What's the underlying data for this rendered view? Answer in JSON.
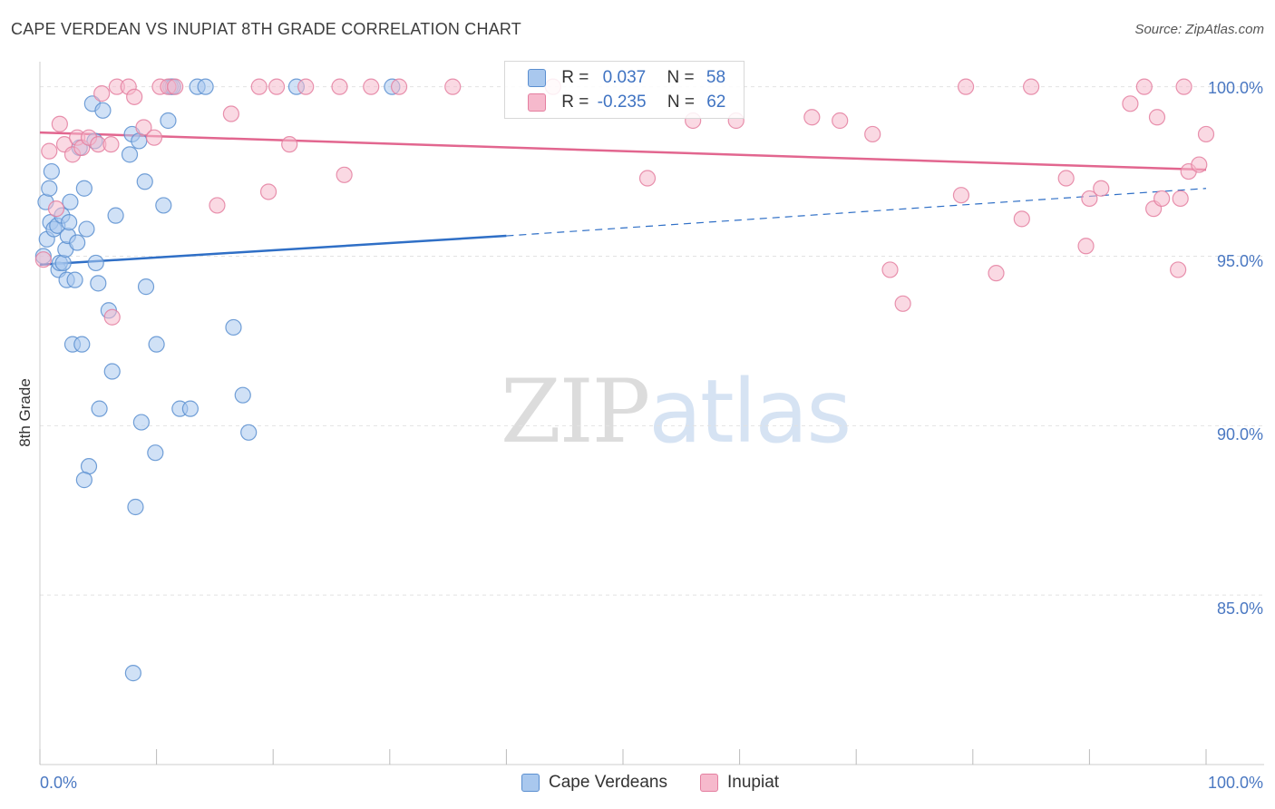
{
  "header": {
    "title": "CAPE VERDEAN VS INUPIAT 8TH GRADE CORRELATION CHART",
    "source": "Source: ZipAtlas.com"
  },
  "watermark": {
    "zip": "ZIP",
    "atlas": "atlas"
  },
  "legend": {
    "rows": [
      {
        "r_label": "R =",
        "r_value": "0.037",
        "n_label": "N =",
        "n_value": "58"
      },
      {
        "r_label": "R =",
        "r_value": "-0.235",
        "n_label": "N =",
        "n_value": "62"
      }
    ]
  },
  "bottom_legend": {
    "blue": "Cape Verdeans",
    "pink": "Inupiat"
  },
  "colors": {
    "blue_fill": "#a9c8ee",
    "blue_stroke": "#5b8fd0",
    "blue_line": "#2f6fc6",
    "pink_fill": "#f6b9cc",
    "pink_stroke": "#e47fa0",
    "pink_line": "#e2668f",
    "grid": "#e2e2e2",
    "axis_text": "#4a78c2"
  },
  "chart_data": {
    "type": "scatter",
    "title": "CAPE VERDEAN VS INUPIAT 8TH GRADE CORRELATION CHART",
    "xlabel": "",
    "ylabel": "8th Grade",
    "xlim": [
      0,
      100
    ],
    "ylim": [
      80.0,
      100.9
    ],
    "x_tick_labels": [
      "0.0%",
      "100.0%"
    ],
    "y_ticks": [
      85,
      90,
      95,
      100
    ],
    "y_tick_labels": [
      "85.0%",
      "90.0%",
      "95.0%",
      "100.0%"
    ],
    "grid": true,
    "series": [
      {
        "name": "Cape Verdeans",
        "color": "blue",
        "trend": {
          "x0": 0,
          "y0": 94.75,
          "x1": 40,
          "y1": 95.6,
          "dashed_to_x": 100,
          "dashed_to_y": 97.0
        },
        "points": [
          [
            0.3,
            95.0
          ],
          [
            0.5,
            96.6
          ],
          [
            0.6,
            95.5
          ],
          [
            0.8,
            97.0
          ],
          [
            0.9,
            96.0
          ],
          [
            1.0,
            97.5
          ],
          [
            1.2,
            95.8
          ],
          [
            1.5,
            95.9
          ],
          [
            1.6,
            94.6
          ],
          [
            1.7,
            94.8
          ],
          [
            1.9,
            96.2
          ],
          [
            2.0,
            94.8
          ],
          [
            2.2,
            95.2
          ],
          [
            2.3,
            94.3
          ],
          [
            2.4,
            95.6
          ],
          [
            2.5,
            96.0
          ],
          [
            2.6,
            96.6
          ],
          [
            2.8,
            92.4
          ],
          [
            3.0,
            94.3
          ],
          [
            3.2,
            95.4
          ],
          [
            3.4,
            98.2
          ],
          [
            3.6,
            92.4
          ],
          [
            3.8,
            97.0
          ],
          [
            4.0,
            95.8
          ],
          [
            4.2,
            88.8
          ],
          [
            4.5,
            99.5
          ],
          [
            4.7,
            98.4
          ],
          [
            4.8,
            94.8
          ],
          [
            5.0,
            94.2
          ],
          [
            5.1,
            90.5
          ],
          [
            5.4,
            99.3
          ],
          [
            5.9,
            93.4
          ],
          [
            6.2,
            91.6
          ],
          [
            6.5,
            96.2
          ],
          [
            7.7,
            98.0
          ],
          [
            7.9,
            98.6
          ],
          [
            8.2,
            87.6
          ],
          [
            8.5,
            98.4
          ],
          [
            8.7,
            90.1
          ],
          [
            9.0,
            97.2
          ],
          [
            9.1,
            94.1
          ],
          [
            9.9,
            89.2
          ],
          [
            10.0,
            92.4
          ],
          [
            10.6,
            96.5
          ],
          [
            11.0,
            99.0
          ],
          [
            11.2,
            100.0
          ],
          [
            11.4,
            100.0
          ],
          [
            12.0,
            90.5
          ],
          [
            12.9,
            90.5
          ],
          [
            13.5,
            100.0
          ],
          [
            14.2,
            100.0
          ],
          [
            16.6,
            92.9
          ],
          [
            17.4,
            90.9
          ],
          [
            17.9,
            89.8
          ],
          [
            22.0,
            100.0
          ],
          [
            30.2,
            100.0
          ],
          [
            3.8,
            88.4
          ],
          [
            8.0,
            82.7
          ]
        ]
      },
      {
        "name": "Inupiat",
        "color": "pink",
        "trend": {
          "x0": 0,
          "y0": 98.65,
          "x1": 100,
          "y1": 97.55
        },
        "points": [
          [
            0.3,
            94.9
          ],
          [
            0.8,
            98.1
          ],
          [
            1.4,
            96.4
          ],
          [
            1.7,
            98.9
          ],
          [
            2.1,
            98.3
          ],
          [
            2.8,
            98.0
          ],
          [
            3.2,
            98.5
          ],
          [
            3.6,
            98.2
          ],
          [
            4.2,
            98.5
          ],
          [
            5.0,
            98.3
          ],
          [
            5.3,
            99.8
          ],
          [
            6.1,
            98.3
          ],
          [
            6.2,
            93.2
          ],
          [
            6.6,
            100.0
          ],
          [
            7.6,
            100.0
          ],
          [
            8.1,
            99.7
          ],
          [
            8.9,
            98.8
          ],
          [
            9.8,
            98.5
          ],
          [
            10.3,
            100.0
          ],
          [
            11.0,
            100.0
          ],
          [
            11.6,
            100.0
          ],
          [
            15.2,
            96.5
          ],
          [
            16.4,
            99.2
          ],
          [
            18.8,
            100.0
          ],
          [
            19.6,
            96.9
          ],
          [
            20.3,
            100.0
          ],
          [
            21.4,
            98.3
          ],
          [
            22.8,
            100.0
          ],
          [
            25.7,
            100.0
          ],
          [
            26.1,
            97.4
          ],
          [
            28.4,
            100.0
          ],
          [
            30.8,
            100.0
          ],
          [
            35.4,
            100.0
          ],
          [
            44.0,
            100.0
          ],
          [
            52.1,
            97.3
          ],
          [
            56.0,
            99.0
          ],
          [
            59.7,
            99.0
          ],
          [
            66.2,
            99.1
          ],
          [
            68.6,
            99.0
          ],
          [
            72.9,
            94.6
          ],
          [
            74.0,
            93.6
          ],
          [
            79.0,
            96.8
          ],
          [
            79.4,
            100.0
          ],
          [
            82.0,
            94.5
          ],
          [
            84.2,
            96.1
          ],
          [
            85.0,
            100.0
          ],
          [
            88.0,
            97.3
          ],
          [
            89.7,
            95.3
          ],
          [
            90.0,
            96.7
          ],
          [
            91.0,
            97.0
          ],
          [
            93.5,
            99.5
          ],
          [
            94.7,
            100.0
          ],
          [
            95.5,
            96.4
          ],
          [
            95.8,
            99.1
          ],
          [
            96.2,
            96.7
          ],
          [
            97.6,
            94.6
          ],
          [
            97.8,
            96.7
          ],
          [
            98.1,
            100.0
          ],
          [
            98.5,
            97.5
          ],
          [
            99.4,
            97.7
          ],
          [
            100.0,
            98.6
          ],
          [
            71.4,
            98.6
          ]
        ]
      }
    ]
  }
}
